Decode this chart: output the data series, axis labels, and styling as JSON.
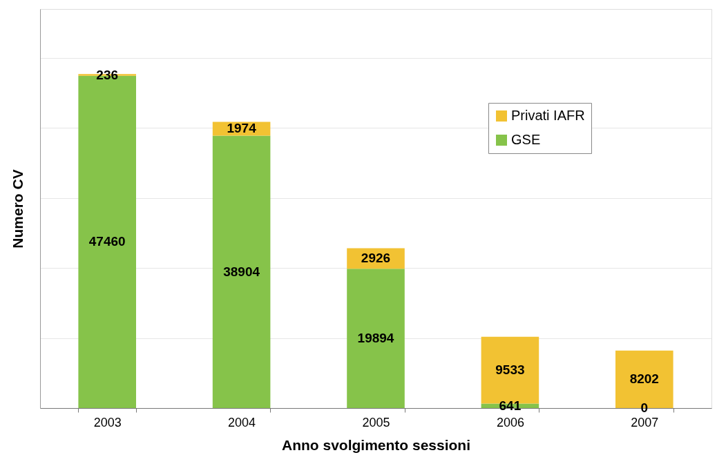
{
  "chart_data": {
    "type": "bar",
    "xlabel": "Anno svolgimento sessioni",
    "ylabel": "Numero CV",
    "categories": [
      "2003",
      "2004",
      "2005",
      "2006",
      "2007"
    ],
    "series": [
      {
        "name": "GSE",
        "color": "#86c34a",
        "values": [
          47460,
          38904,
          19894,
          641,
          0
        ],
        "value_labels": [
          "47460",
          "38904",
          "19894",
          "641",
          null
        ]
      },
      {
        "name": "Privati IAFR",
        "color": "#f2c233",
        "values": [
          236,
          1974,
          2926,
          9533,
          8202
        ],
        "value_labels": [
          "236",
          "1974",
          "2926",
          "9533",
          "8202"
        ]
      }
    ],
    "annotations": [
      {
        "text": "0",
        "x": "2007",
        "y": 0
      }
    ],
    "stacked": true,
    "ylim": [
      0,
      57000
    ],
    "yticks": [
      {
        "value": 0,
        "label": null
      },
      {
        "value": 10000,
        "label": null
      },
      {
        "value": 20000,
        "label": null
      },
      {
        "value": 30000,
        "label": null
      },
      {
        "value": 40000,
        "label": null
      },
      {
        "value": 50000,
        "label": null
      }
    ],
    "grid": "y",
    "legend": "top right",
    "tick_labels": "x"
  }
}
